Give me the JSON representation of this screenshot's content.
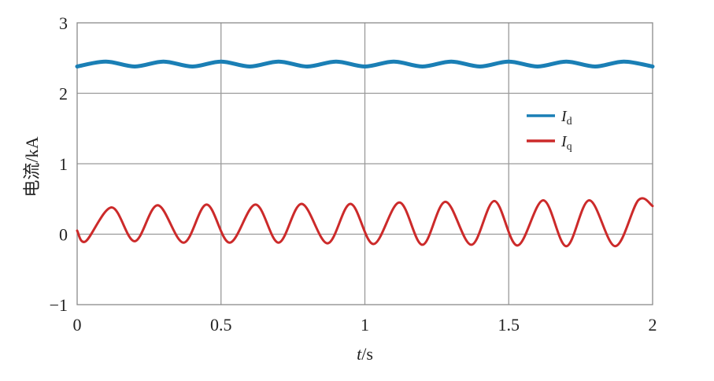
{
  "chart_data": {
    "type": "line",
    "xlabel_italic": "t",
    "xlabel_unit": "/s",
    "ylabel": "电流/kA",
    "xlim": [
      0,
      2
    ],
    "ylim": [
      -1,
      3
    ],
    "xticks": [
      0,
      0.5,
      1,
      1.5,
      2
    ],
    "xtick_labels": [
      "0",
      "0.5",
      "1",
      "1.5",
      "2"
    ],
    "yticks": [
      -1,
      0,
      1,
      2,
      3
    ],
    "ytick_labels": [
      "−1",
      "0",
      "1",
      "2",
      "3"
    ],
    "grid": true,
    "legend_position": "right",
    "series": [
      {
        "name": "I",
        "subscript": "d",
        "color": "#1a7fb5",
        "x": [
          0,
          0.1,
          0.2,
          0.3,
          0.4,
          0.5,
          0.6,
          0.7,
          0.8,
          0.9,
          1.0,
          1.1,
          1.2,
          1.3,
          1.4,
          1.5,
          1.6,
          1.7,
          1.8,
          1.9,
          2.0
        ],
        "values": [
          2.38,
          2.45,
          2.38,
          2.45,
          2.38,
          2.45,
          2.38,
          2.45,
          2.38,
          2.45,
          2.38,
          2.45,
          2.38,
          2.45,
          2.38,
          2.45,
          2.38,
          2.45,
          2.38,
          2.45,
          2.38
        ]
      },
      {
        "name": "I",
        "subscript": "q",
        "color": "#cc2a2a",
        "x": [
          0,
          0.03,
          0.12,
          0.2,
          0.28,
          0.37,
          0.45,
          0.53,
          0.62,
          0.7,
          0.78,
          0.87,
          0.95,
          1.03,
          1.12,
          1.2,
          1.28,
          1.37,
          1.45,
          1.53,
          1.62,
          1.7,
          1.78,
          1.87,
          1.95,
          2.0
        ],
        "values": [
          0.05,
          -0.1,
          0.38,
          -0.1,
          0.41,
          -0.12,
          0.42,
          -0.12,
          0.42,
          -0.12,
          0.43,
          -0.13,
          0.43,
          -0.14,
          0.45,
          -0.15,
          0.46,
          -0.15,
          0.47,
          -0.16,
          0.48,
          -0.17,
          0.48,
          -0.17,
          0.48,
          0.4
        ]
      }
    ]
  }
}
